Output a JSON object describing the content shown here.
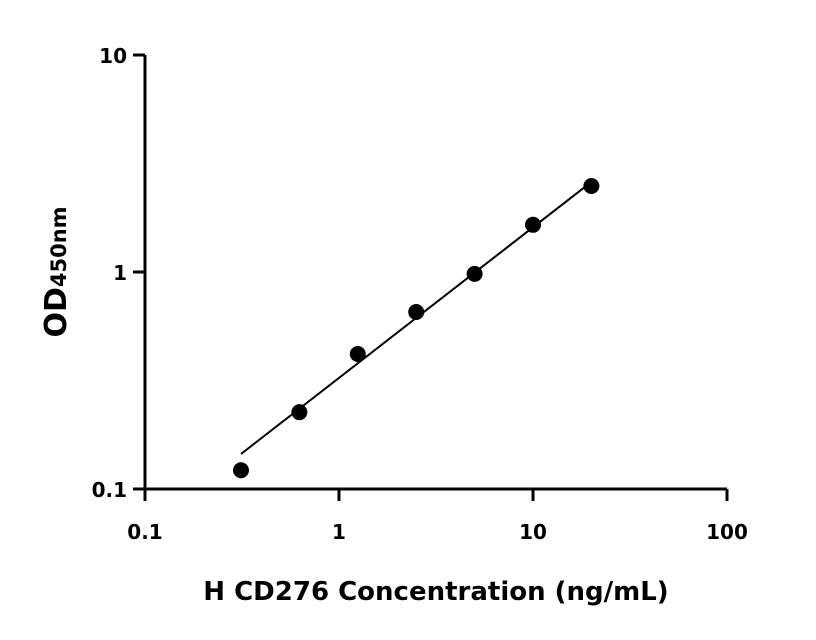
{
  "chart_data": {
    "type": "scatter",
    "title": "",
    "xlabel": "H CD276 Concentration (ng/mL)",
    "ylabel_main": "OD",
    "ylabel_sub": "450nm",
    "x_scale": "log",
    "y_scale": "log",
    "xlim": [
      0.1,
      100
    ],
    "ylim": [
      0.1,
      10
    ],
    "x_ticks": [
      "0.1",
      "1",
      "10",
      "100"
    ],
    "y_ticks": [
      "0.1",
      "1",
      "10"
    ],
    "grid": false,
    "points": [
      {
        "x": 0.3125,
        "y": 0.122
      },
      {
        "x": 0.625,
        "y": 0.226
      },
      {
        "x": 1.25,
        "y": 0.419
      },
      {
        "x": 2.5,
        "y": 0.654
      },
      {
        "x": 5,
        "y": 0.98
      },
      {
        "x": 10,
        "y": 1.65
      },
      {
        "x": 20,
        "y": 2.49
      }
    ],
    "fit_line": {
      "x": [
        0.3125,
        20
      ],
      "y": [
        0.145,
        2.6
      ]
    },
    "colors": {
      "points": "#000000",
      "line": "#000000",
      "axes": "#000000"
    }
  }
}
